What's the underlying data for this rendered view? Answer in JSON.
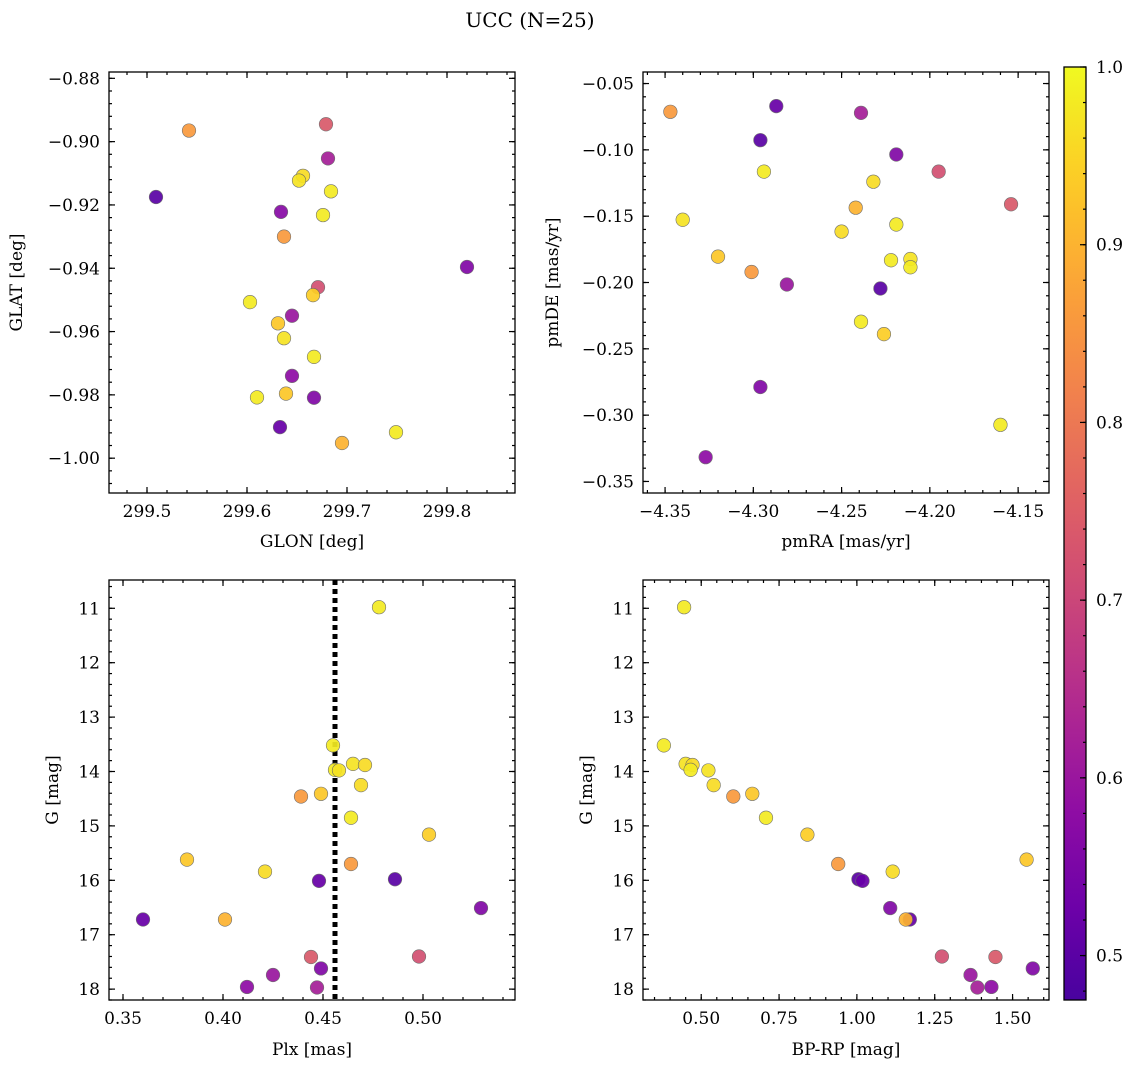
{
  "chart_data": {
    "title": "UCC (N=25)",
    "type": "scatter",
    "colormap": "plasma",
    "colorbar": {
      "range": [
        0.475,
        1.0
      ],
      "ticks": [
        1.0,
        0.9,
        0.8,
        0.7,
        0.6,
        0.5
      ],
      "tick_labels": [
        "1.0",
        "0.9",
        "0.8",
        "0.7",
        "0.6",
        "0.5"
      ],
      "placement": "right"
    },
    "panels": [
      {
        "key": "p1",
        "xlabel": "GLON [deg]",
        "ylabel": "GLAT [deg]",
        "xlim": [
          299.462,
          299.868
        ],
        "ylim": [
          -1.011,
          -0.878
        ],
        "y_inverted": false,
        "xticks": [
          299.5,
          299.6,
          299.7,
          299.8
        ],
        "xtick_labels": [
          "299.5",
          "299.6",
          "299.7",
          "299.8"
        ],
        "yticks": [
          -0.88,
          -0.9,
          -0.92,
          -0.94,
          -0.96,
          -0.98,
          -1.0
        ],
        "ytick_labels": [
          "−0.88",
          "−0.90",
          "−0.92",
          "−0.94",
          "−0.96",
          "−0.98",
          "−1.00"
        ],
        "points": [
          {
            "x": 299.542,
            "y": -0.8965,
            "c": 0.86
          },
          {
            "x": 299.679,
            "y": -0.8945,
            "c": 0.74
          },
          {
            "x": 299.681,
            "y": -0.9053,
            "c": 0.62
          },
          {
            "x": 299.509,
            "y": -0.9175,
            "c": 0.5
          },
          {
            "x": 299.656,
            "y": -0.9108,
            "c": 0.96
          },
          {
            "x": 299.652,
            "y": -0.9123,
            "c": 0.97
          },
          {
            "x": 299.684,
            "y": -0.9157,
            "c": 0.98
          },
          {
            "x": 299.634,
            "y": -0.9222,
            "c": 0.57
          },
          {
            "x": 299.676,
            "y": -0.9232,
            "c": 0.98
          },
          {
            "x": 299.637,
            "y": -0.93,
            "c": 0.86
          },
          {
            "x": 299.82,
            "y": -0.9396,
            "c": 0.56
          },
          {
            "x": 299.671,
            "y": -0.946,
            "c": 0.72
          },
          {
            "x": 299.666,
            "y": -0.9485,
            "c": 0.94
          },
          {
            "x": 299.603,
            "y": -0.9507,
            "c": 0.98
          },
          {
            "x": 299.645,
            "y": -0.955,
            "c": 0.6
          },
          {
            "x": 299.631,
            "y": -0.9574,
            "c": 0.93
          },
          {
            "x": 299.637,
            "y": -0.9621,
            "c": 0.97
          },
          {
            "x": 299.667,
            "y": -0.968,
            "c": 0.98
          },
          {
            "x": 299.645,
            "y": -0.974,
            "c": 0.58
          },
          {
            "x": 299.61,
            "y": -0.9808,
            "c": 0.98
          },
          {
            "x": 299.639,
            "y": -0.9796,
            "c": 0.93
          },
          {
            "x": 299.667,
            "y": -0.9809,
            "c": 0.56
          },
          {
            "x": 299.633,
            "y": -0.9902,
            "c": 0.52
          },
          {
            "x": 299.749,
            "y": -0.9918,
            "c": 0.98
          },
          {
            "x": 299.695,
            "y": -0.9952,
            "c": 0.9
          }
        ]
      },
      {
        "key": "p2",
        "xlabel": "pmRA [mas/yr]",
        "ylabel": "pmDE [mas/yr]",
        "xlim": [
          -4.3625,
          -4.1325
        ],
        "ylim": [
          -0.3587,
          -0.0413
        ],
        "y_inverted": false,
        "xticks": [
          -4.35,
          -4.3,
          -4.25,
          -4.2,
          -4.15
        ],
        "xtick_labels": [
          "−4.35",
          "−4.30",
          "−4.25",
          "−4.20",
          "−4.15"
        ],
        "yticks": [
          -0.05,
          -0.1,
          -0.15,
          -0.2,
          -0.25,
          -0.3,
          -0.35
        ],
        "ytick_labels": [
          "−0.05",
          "−0.10",
          "−0.15",
          "−0.20",
          "−0.25",
          "−0.30",
          "−0.35"
        ],
        "points": [
          {
            "x": -4.347,
            "y": -0.0713,
            "c": 0.86
          },
          {
            "x": -4.287,
            "y": -0.067,
            "c": 0.52
          },
          {
            "x": -4.239,
            "y": -0.0721,
            "c": 0.62
          },
          {
            "x": -4.296,
            "y": -0.0927,
            "c": 0.5
          },
          {
            "x": -4.219,
            "y": -0.1035,
            "c": 0.56
          },
          {
            "x": -4.294,
            "y": -0.1164,
            "c": 0.98
          },
          {
            "x": -4.195,
            "y": -0.1164,
            "c": 0.72
          },
          {
            "x": -4.232,
            "y": -0.124,
            "c": 0.96
          },
          {
            "x": -4.154,
            "y": -0.141,
            "c": 0.74
          },
          {
            "x": -4.242,
            "y": -0.1436,
            "c": 0.9
          },
          {
            "x": -4.34,
            "y": -0.1527,
            "c": 0.97
          },
          {
            "x": -4.219,
            "y": -0.1563,
            "c": 0.98
          },
          {
            "x": -4.25,
            "y": -0.1616,
            "c": 0.96
          },
          {
            "x": -4.32,
            "y": -0.1805,
            "c": 0.93
          },
          {
            "x": -4.211,
            "y": -0.1823,
            "c": 0.97
          },
          {
            "x": -4.222,
            "y": -0.1832,
            "c": 0.98
          },
          {
            "x": -4.211,
            "y": -0.1885,
            "c": 0.98
          },
          {
            "x": -4.301,
            "y": -0.1921,
            "c": 0.86
          },
          {
            "x": -4.281,
            "y": -0.2015,
            "c": 0.6
          },
          {
            "x": -4.228,
            "y": -0.2045,
            "c": 0.5
          },
          {
            "x": -4.239,
            "y": -0.2296,
            "c": 0.98
          },
          {
            "x": -4.226,
            "y": -0.2389,
            "c": 0.94
          },
          {
            "x": -4.296,
            "y": -0.2788,
            "c": 0.56
          },
          {
            "x": -4.16,
            "y": -0.3073,
            "c": 0.98
          },
          {
            "x": -4.327,
            "y": -0.3317,
            "c": 0.58
          }
        ]
      },
      {
        "key": "p3",
        "xlabel": "Plx [mas]",
        "ylabel": "G [mag]",
        "xlim": [
          0.343,
          0.546
        ],
        "ylim": [
          18.2,
          10.48
        ],
        "y_inverted": true,
        "xticks": [
          0.35,
          0.4,
          0.45,
          0.5
        ],
        "xtick_labels": [
          "0.35",
          "0.40",
          "0.45",
          "0.50"
        ],
        "yticks": [
          11,
          12,
          13,
          14,
          15,
          16,
          17,
          18
        ],
        "ytick_labels": [
          "11",
          "12",
          "13",
          "14",
          "15",
          "16",
          "17",
          "18"
        ],
        "vline": {
          "x": 0.456,
          "style": "dotted"
        },
        "points": [
          {
            "x": 0.478,
            "y": 10.98,
            "c": 0.98
          },
          {
            "x": 0.455,
            "y": 13.52,
            "c": 0.98
          },
          {
            "x": 0.465,
            "y": 13.86,
            "c": 0.97
          },
          {
            "x": 0.471,
            "y": 13.88,
            "c": 0.96
          },
          {
            "x": 0.456,
            "y": 13.97,
            "c": 0.98
          },
          {
            "x": 0.458,
            "y": 13.98,
            "c": 0.97
          },
          {
            "x": 0.469,
            "y": 14.25,
            "c": 0.96
          },
          {
            "x": 0.449,
            "y": 14.41,
            "c": 0.93
          },
          {
            "x": 0.439,
            "y": 14.46,
            "c": 0.86
          },
          {
            "x": 0.464,
            "y": 14.85,
            "c": 0.98
          },
          {
            "x": 0.503,
            "y": 15.16,
            "c": 0.94
          },
          {
            "x": 0.382,
            "y": 15.62,
            "c": 0.93
          },
          {
            "x": 0.464,
            "y": 15.7,
            "c": 0.86
          },
          {
            "x": 0.421,
            "y": 15.84,
            "c": 0.96
          },
          {
            "x": 0.486,
            "y": 15.98,
            "c": 0.5
          },
          {
            "x": 0.448,
            "y": 16.01,
            "c": 0.52
          },
          {
            "x": 0.529,
            "y": 16.51,
            "c": 0.56
          },
          {
            "x": 0.36,
            "y": 16.72,
            "c": 0.52
          },
          {
            "x": 0.401,
            "y": 16.72,
            "c": 0.9
          },
          {
            "x": 0.498,
            "y": 17.4,
            "c": 0.72
          },
          {
            "x": 0.444,
            "y": 17.41,
            "c": 0.74
          },
          {
            "x": 0.449,
            "y": 17.62,
            "c": 0.56
          },
          {
            "x": 0.425,
            "y": 17.74,
            "c": 0.6
          },
          {
            "x": 0.412,
            "y": 17.96,
            "c": 0.58
          },
          {
            "x": 0.447,
            "y": 17.97,
            "c": 0.62
          }
        ]
      },
      {
        "key": "p4",
        "xlabel": "BP-RP [mag]",
        "ylabel": "G [mag]",
        "xlim": [
          0.313,
          1.617
        ],
        "ylim": [
          18.2,
          10.48
        ],
        "y_inverted": true,
        "xticks": [
          0.5,
          0.75,
          1.0,
          1.25,
          1.5
        ],
        "xtick_labels": [
          "0.50",
          "0.75",
          "1.00",
          "1.25",
          "1.50"
        ],
        "yticks": [
          11,
          12,
          13,
          14,
          15,
          16,
          17,
          18
        ],
        "ytick_labels": [
          "11",
          "12",
          "13",
          "14",
          "15",
          "16",
          "17",
          "18"
        ],
        "points": [
          {
            "x": 0.445,
            "y": 10.98,
            "c": 0.98
          },
          {
            "x": 0.38,
            "y": 13.52,
            "c": 0.98
          },
          {
            "x": 0.45,
            "y": 13.86,
            "c": 0.97
          },
          {
            "x": 0.472,
            "y": 13.88,
            "c": 0.96
          },
          {
            "x": 0.466,
            "y": 13.97,
            "c": 0.98
          },
          {
            "x": 0.523,
            "y": 13.98,
            "c": 0.97
          },
          {
            "x": 0.54,
            "y": 14.25,
            "c": 0.96
          },
          {
            "x": 0.664,
            "y": 14.41,
            "c": 0.93
          },
          {
            "x": 0.603,
            "y": 14.46,
            "c": 0.86
          },
          {
            "x": 0.708,
            "y": 14.85,
            "c": 0.98
          },
          {
            "x": 0.841,
            "y": 15.16,
            "c": 0.94
          },
          {
            "x": 1.545,
            "y": 15.62,
            "c": 0.93
          },
          {
            "x": 0.94,
            "y": 15.7,
            "c": 0.86
          },
          {
            "x": 1.115,
            "y": 15.84,
            "c": 0.96
          },
          {
            "x": 1.005,
            "y": 15.98,
            "c": 0.5
          },
          {
            "x": 1.018,
            "y": 16.01,
            "c": 0.52
          },
          {
            "x": 1.107,
            "y": 16.51,
            "c": 0.56
          },
          {
            "x": 1.17,
            "y": 16.72,
            "c": 0.52
          },
          {
            "x": 1.157,
            "y": 16.72,
            "c": 0.9
          },
          {
            "x": 1.273,
            "y": 17.4,
            "c": 0.72
          },
          {
            "x": 1.445,
            "y": 17.41,
            "c": 0.74
          },
          {
            "x": 1.565,
            "y": 17.62,
            "c": 0.56
          },
          {
            "x": 1.365,
            "y": 17.74,
            "c": 0.6
          },
          {
            "x": 1.432,
            "y": 17.96,
            "c": 0.58
          },
          {
            "x": 1.387,
            "y": 17.97,
            "c": 0.62
          }
        ]
      }
    ]
  }
}
